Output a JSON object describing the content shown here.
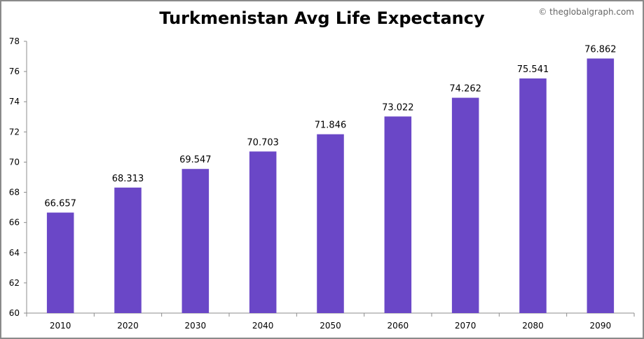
{
  "chart_data": {
    "type": "bar",
    "title": "Turkmenistan Avg Life Expectancy",
    "watermark": "© theglobalgraph.com",
    "categories": [
      "2010",
      "2020",
      "2030",
      "2040",
      "2050",
      "2060",
      "2070",
      "2080",
      "2090"
    ],
    "values": [
      66.657,
      68.313,
      69.547,
      70.703,
      71.846,
      73.022,
      74.262,
      75.541,
      76.862
    ],
    "value_labels": [
      "66.657",
      "68.313",
      "69.547",
      "70.703",
      "71.846",
      "73.022",
      "74.262",
      "75.541",
      "76.862"
    ],
    "xlabel": "",
    "ylabel": "",
    "ylim": [
      60,
      78
    ],
    "yticks": [
      60,
      62,
      64,
      66,
      68,
      70,
      72,
      74,
      76,
      78
    ],
    "grid": false,
    "legend": "none",
    "bar_color": "#6a47c7"
  }
}
